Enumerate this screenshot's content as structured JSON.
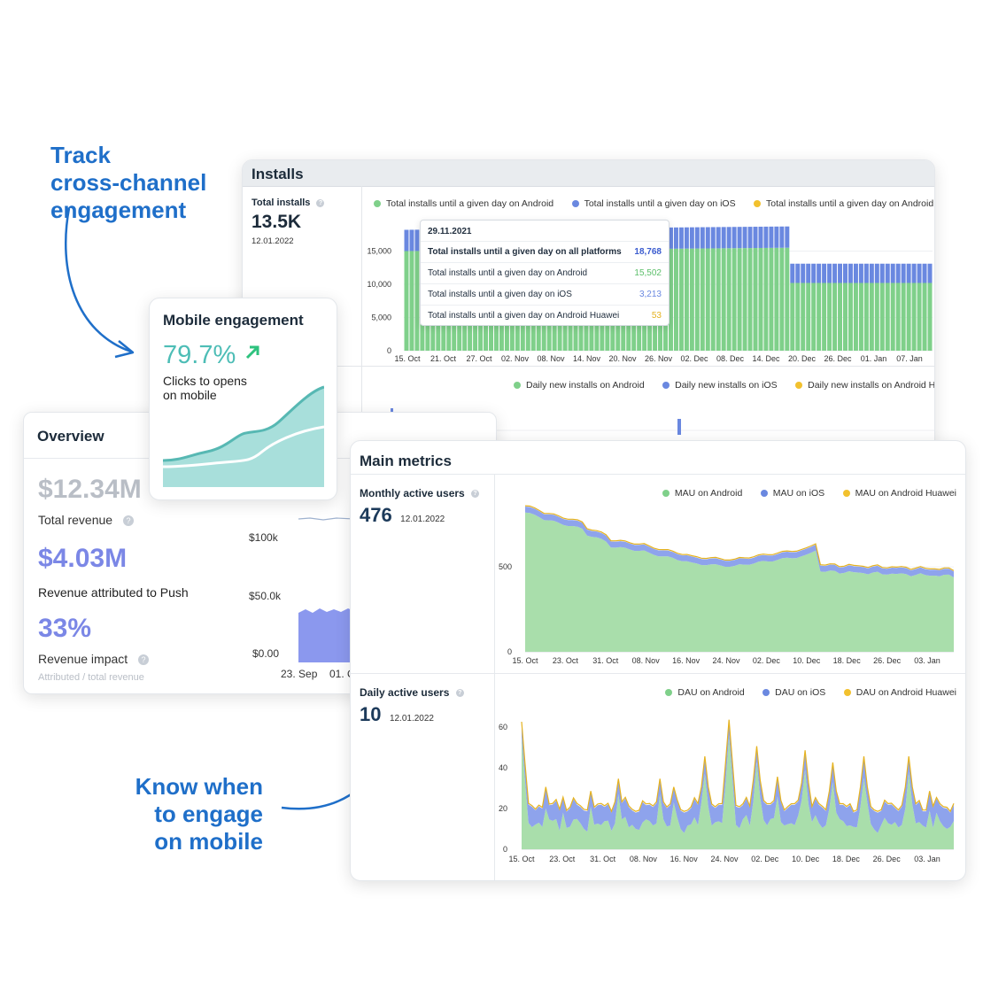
{
  "callouts": {
    "track": [
      "Track",
      "cross-channel",
      "engagement"
    ],
    "know": [
      "Know when",
      "to engage",
      "on mobile"
    ]
  },
  "installs": {
    "title": "Installs",
    "total_label": "Total installs",
    "total_value": "13.5K",
    "total_date": "12.01.2022",
    "legend": [
      {
        "label": "Total installs until a given day on Android",
        "color": "#7fd08a"
      },
      {
        "label": "Total installs until a given day on iOS",
        "color": "#6a88e0"
      },
      {
        "label": "Total installs until a given day on Android Huawei",
        "color": "#f2c12e"
      }
    ],
    "y_ticks": [
      "15,000",
      "10,000",
      "5,000",
      "0"
    ],
    "x_ticks": [
      "15. Oct",
      "21. Oct",
      "27. Oct",
      "02. Nov",
      "08. Nov",
      "14. Nov",
      "20. Nov",
      "26. Nov",
      "02. Dec",
      "08. Dec",
      "14. Dec",
      "20. Dec",
      "26. Dec",
      "01. Jan",
      "07. Jan"
    ],
    "tooltip": {
      "date": "29.11.2021",
      "rows": [
        {
          "label": "Total installs until a given day on all platforms",
          "value": "18,768",
          "color": "#3b5ccf",
          "bold": true
        },
        {
          "label": "Total installs until a given day on Android",
          "value": "15,502",
          "color": "#5cbf6a",
          "bold": false
        },
        {
          "label": "Total installs until a given day on iOS",
          "value": "3,213",
          "color": "#6a88e0",
          "bold": false
        },
        {
          "label": "Total installs until a given day on Android Huawei",
          "value": "53",
          "color": "#e5b21f",
          "bold": false
        }
      ]
    },
    "daily_legend": [
      {
        "label": "Daily new installs on Android",
        "color": "#7fd08a"
      },
      {
        "label": "Daily new installs on iOS",
        "color": "#6a88e0"
      },
      {
        "label": "Daily new installs on Android Huawei",
        "color": "#f2c12e"
      }
    ]
  },
  "overview": {
    "title": "Overview",
    "total_revenue_value": "$12.34M",
    "total_revenue_label": "Total revenue",
    "push_value": "$4.03M",
    "push_label": "Revenue attributed to Push",
    "impact_value": "33%",
    "impact_label": "Revenue impact",
    "impact_sub": "Attributed / total revenue",
    "y_ticks": [
      "$100k",
      "$50.0k",
      "$0.00"
    ],
    "x_ticks": [
      "23. Sep",
      "01. O"
    ]
  },
  "mobile": {
    "title": "Mobile engagement",
    "value": "79.7%",
    "label_line1": "Clicks to opens",
    "label_line2": "on mobile"
  },
  "main_metrics": {
    "title": "Main metrics",
    "mau": {
      "label": "Monthly active users",
      "value": "476",
      "date": "12.01.2022",
      "legend": [
        {
          "label": "MAU on Android",
          "color": "#7fd08a"
        },
        {
          "label": "MAU on iOS",
          "color": "#6a88e0"
        },
        {
          "label": "MAU on Android Huawei",
          "color": "#f2c12e"
        }
      ],
      "y_ticks": [
        "500",
        "0"
      ]
    },
    "dau": {
      "label": "Daily active users",
      "value": "10",
      "date": "12.01.2022",
      "legend": [
        {
          "label": "DAU on Android",
          "color": "#7fd08a"
        },
        {
          "label": "DAU on iOS",
          "color": "#6a88e0"
        },
        {
          "label": "DAU on Android Huawei",
          "color": "#f2c12e"
        }
      ],
      "y_ticks": [
        "60",
        "40",
        "20",
        "0"
      ]
    },
    "x_ticks": [
      "15. Oct",
      "23. Oct",
      "31. Oct",
      "08. Nov",
      "16. Nov",
      "24. Nov",
      "02. Dec",
      "10. Dec",
      "18. Dec",
      "26. Dec",
      "03. Jan"
    ]
  }
}
